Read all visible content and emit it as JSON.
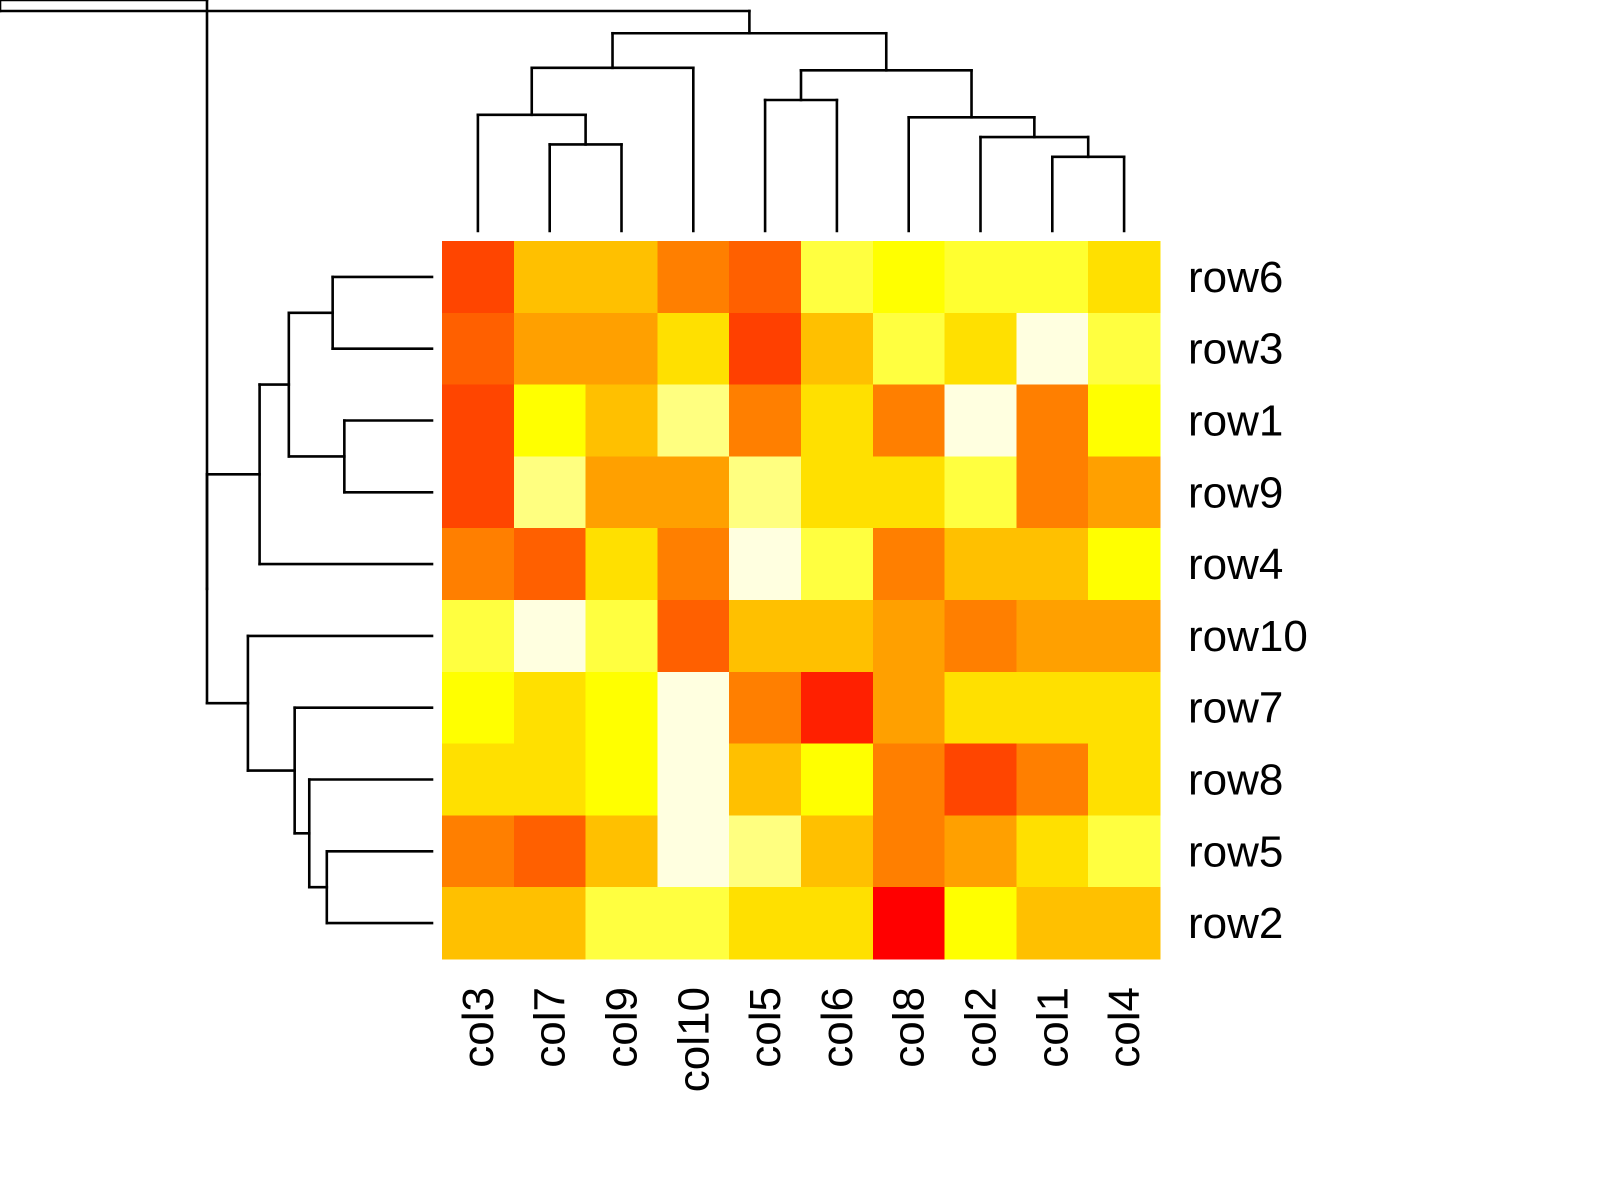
{
  "chart_data": {
    "type": "heatmap",
    "title": "",
    "xlabel": "",
    "ylabel": "",
    "legend": "none",
    "grid": false,
    "palette": "heat",
    "columns": [
      "col3",
      "col7",
      "col9",
      "col10",
      "col5",
      "col6",
      "col8",
      "col2",
      "col1",
      "col4"
    ],
    "rows": [
      "row6",
      "row3",
      "row1",
      "row9",
      "row4",
      "row10",
      "row7",
      "row8",
      "row5",
      "row2"
    ],
    "color_levels": [
      [
        "#FF4500",
        "#FFC000",
        "#FFC000",
        "#FF7F00",
        "#FF6000",
        "#FFFF40",
        "#FFFF00",
        "#FFFF30",
        "#FFFF30",
        "#FFE000"
      ],
      [
        "#FF6000",
        "#FFA000",
        "#FFA000",
        "#FFE000",
        "#FF4000",
        "#FFC000",
        "#FFFF40",
        "#FFE000",
        "#FFFFE0",
        "#FFFF40"
      ],
      [
        "#FF4500",
        "#FFFF00",
        "#FFC000",
        "#FFFF80",
        "#FF7F00",
        "#FFE000",
        "#FF7F00",
        "#FFFFE0",
        "#FF7F00",
        "#FFFF00"
      ],
      [
        "#FF4500",
        "#FFFF80",
        "#FFA000",
        "#FFA000",
        "#FFFF80",
        "#FFE000",
        "#FFE000",
        "#FFFF40",
        "#FF7F00",
        "#FFA000"
      ],
      [
        "#FF7F00",
        "#FF6000",
        "#FFE000",
        "#FF7F00",
        "#FFFFE0",
        "#FFFF40",
        "#FF7F00",
        "#FFC000",
        "#FFC000",
        "#FFFF00"
      ],
      [
        "#FFFF40",
        "#FFFFE0",
        "#FFFF40",
        "#FF6000",
        "#FFC000",
        "#FFC000",
        "#FFA000",
        "#FF7F00",
        "#FFA000",
        "#FFA000"
      ],
      [
        "#FFFF00",
        "#FFE000",
        "#FFFF00",
        "#FFFFE0",
        "#FF7F00",
        "#FF2000",
        "#FFA000",
        "#FFE000",
        "#FFE000",
        "#FFE000"
      ],
      [
        "#FFE000",
        "#FFE000",
        "#FFFF00",
        "#FFFFE0",
        "#FFC000",
        "#FFFF00",
        "#FF7F00",
        "#FF4500",
        "#FF7F00",
        "#FFE000"
      ],
      [
        "#FF7F00",
        "#FF6000",
        "#FFC000",
        "#FFFFE0",
        "#FFFF80",
        "#FFC000",
        "#FF7F00",
        "#FFA000",
        "#FFE000",
        "#FFFF40"
      ],
      [
        "#FFC000",
        "#FFC000",
        "#FFFF40",
        "#FFFF40",
        "#FFE000",
        "#FFE000",
        "#FF0000",
        "#FFFF00",
        "#FFC000",
        "#FFC000"
      ]
    ],
    "column_dendrogram": [
      [
        1,
        2,
        0.35
      ],
      [
        8,
        9,
        0.3
      ],
      [
        7,
        11,
        0.38
      ],
      [
        6,
        12,
        0.46
      ],
      [
        0,
        10,
        0.47
      ],
      [
        4,
        5,
        0.53
      ],
      [
        13,
        15,
        0.65
      ],
      [
        3,
        14,
        0.66
      ],
      [
        16,
        17,
        0.8
      ],
      [
        18,
        19,
        0.89
      ]
    ],
    "row_dendrogram": [
      [
        0,
        1,
        0.34
      ],
      [
        2,
        3,
        0.3
      ],
      [
        8,
        9,
        0.36
      ],
      [
        7,
        12,
        0.42
      ],
      [
        6,
        13,
        0.47
      ],
      [
        10,
        11,
        0.49
      ],
      [
        5,
        14,
        0.63
      ],
      [
        4,
        15,
        0.59
      ],
      [
        17,
        16,
        0.77
      ],
      [
        18,
        19,
        0.77
      ]
    ]
  }
}
